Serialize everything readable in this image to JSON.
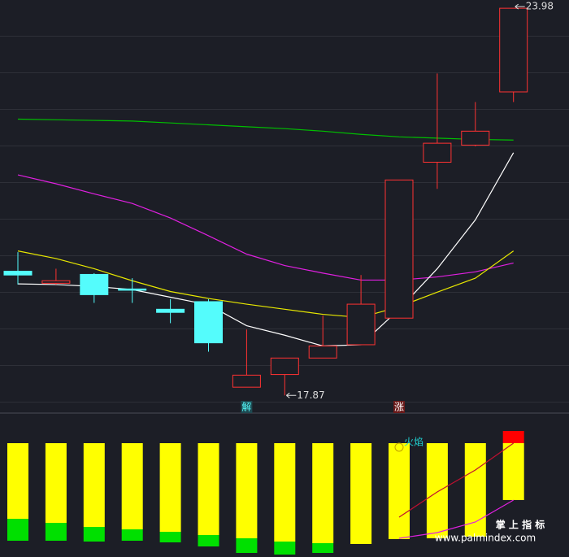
{
  "chart_data": [
    {
      "type": "candlestick",
      "open": [
        19.83,
        19.64,
        19.78,
        19.55,
        19.23,
        19.35,
        18.0,
        18.2,
        18.46,
        18.67,
        19.09,
        21.55,
        21.82,
        22.66
      ],
      "high": [
        20.13,
        19.87,
        19.8,
        19.72,
        19.39,
        19.39,
        18.91,
        18.46,
        19.13,
        19.77,
        21.27,
        22.95,
        22.5,
        23.98
      ],
      "low": [
        19.62,
        19.62,
        19.33,
        19.33,
        19.01,
        18.56,
        18.0,
        17.87,
        18.46,
        18.67,
        19.09,
        21.13,
        21.8,
        22.5
      ],
      "close": [
        19.77,
        19.68,
        19.46,
        19.53,
        19.18,
        18.7,
        18.19,
        18.46,
        18.65,
        19.31,
        21.27,
        21.85,
        22.04,
        23.98
      ],
      "up_color": "#ff3232",
      "down_color": "#54fcfc",
      "series": [
        {
          "color": "#00c000",
          "values": [
            22.23,
            22.22,
            22.21,
            22.2,
            22.17,
            22.14,
            22.11,
            22.08,
            22.04,
            21.99,
            21.95,
            21.93,
            21.91,
            21.9
          ]
        },
        {
          "color": "#e020e0",
          "values": [
            21.35,
            21.21,
            21.05,
            20.9,
            20.67,
            20.39,
            20.1,
            19.92,
            19.8,
            19.69,
            19.69,
            19.74,
            19.82,
            19.96
          ]
        },
        {
          "color": "#e8e800",
          "values": [
            20.15,
            20.03,
            19.87,
            19.68,
            19.51,
            19.4,
            19.31,
            19.23,
            19.15,
            19.1,
            19.27,
            19.5,
            19.72,
            20.15
          ]
        },
        {
          "color": "#ffffff",
          "values": [
            19.63,
            19.62,
            19.59,
            19.54,
            19.42,
            19.3,
            18.97,
            18.82,
            18.65,
            18.67,
            19.23,
            19.87,
            20.64,
            21.7
          ]
        }
      ],
      "ylim": [
        17.63,
        24.11
      ],
      "signals": [
        null,
        null,
        null,
        null,
        null,
        null,
        {
          "text": "解",
          "color": "#54fcfc",
          "background": "#1e4a52"
        },
        null,
        null,
        null,
        {
          "text": "涨",
          "color": "#ffffff",
          "background": "#6a1a1a"
        },
        null,
        null,
        null
      ]
    },
    {
      "type": "range-bar",
      "series": [
        {
          "color": "#00e000",
          "low": [
            20,
            20,
            19,
            20,
            18,
            13,
            5,
            3,
            5,
            null,
            null,
            null,
            null,
            null
          ],
          "high": [
            47,
            42,
            37,
            34,
            31,
            27,
            23,
            19,
            17,
            null,
            null,
            null,
            null,
            null
          ]
        },
        {
          "color": "#ffff00",
          "low": [
            47,
            42,
            37,
            34,
            31,
            27,
            23,
            19,
            17,
            16,
            22,
            23,
            25,
            70
          ],
          "high": [
            140,
            140,
            140,
            140,
            140,
            140,
            140,
            140,
            140,
            140,
            140,
            140,
            140,
            140
          ]
        },
        {
          "color": "#ff0000",
          "low": [
            null,
            null,
            null,
            null,
            null,
            null,
            null,
            null,
            null,
            null,
            null,
            null,
            null,
            140
          ],
          "high": [
            null,
            null,
            null,
            null,
            null,
            null,
            null,
            null,
            null,
            null,
            null,
            null,
            null,
            155
          ]
        }
      ],
      "lines": [
        {
          "color": "#c01030",
          "values": [
            null,
            null,
            null,
            null,
            null,
            null,
            null,
            null,
            null,
            null,
            49,
            80,
            107,
            140
          ]
        },
        {
          "color": "#e020e0",
          "values": [
            null,
            null,
            null,
            null,
            null,
            null,
            null,
            null,
            null,
            null,
            23,
            30,
            43,
            70
          ]
        }
      ],
      "ylim": [
        0,
        175
      ],
      "annotation": "火焰"
    }
  ],
  "watermark": {
    "title": "掌 上 指 标",
    "url": "www.palmindex.com"
  }
}
